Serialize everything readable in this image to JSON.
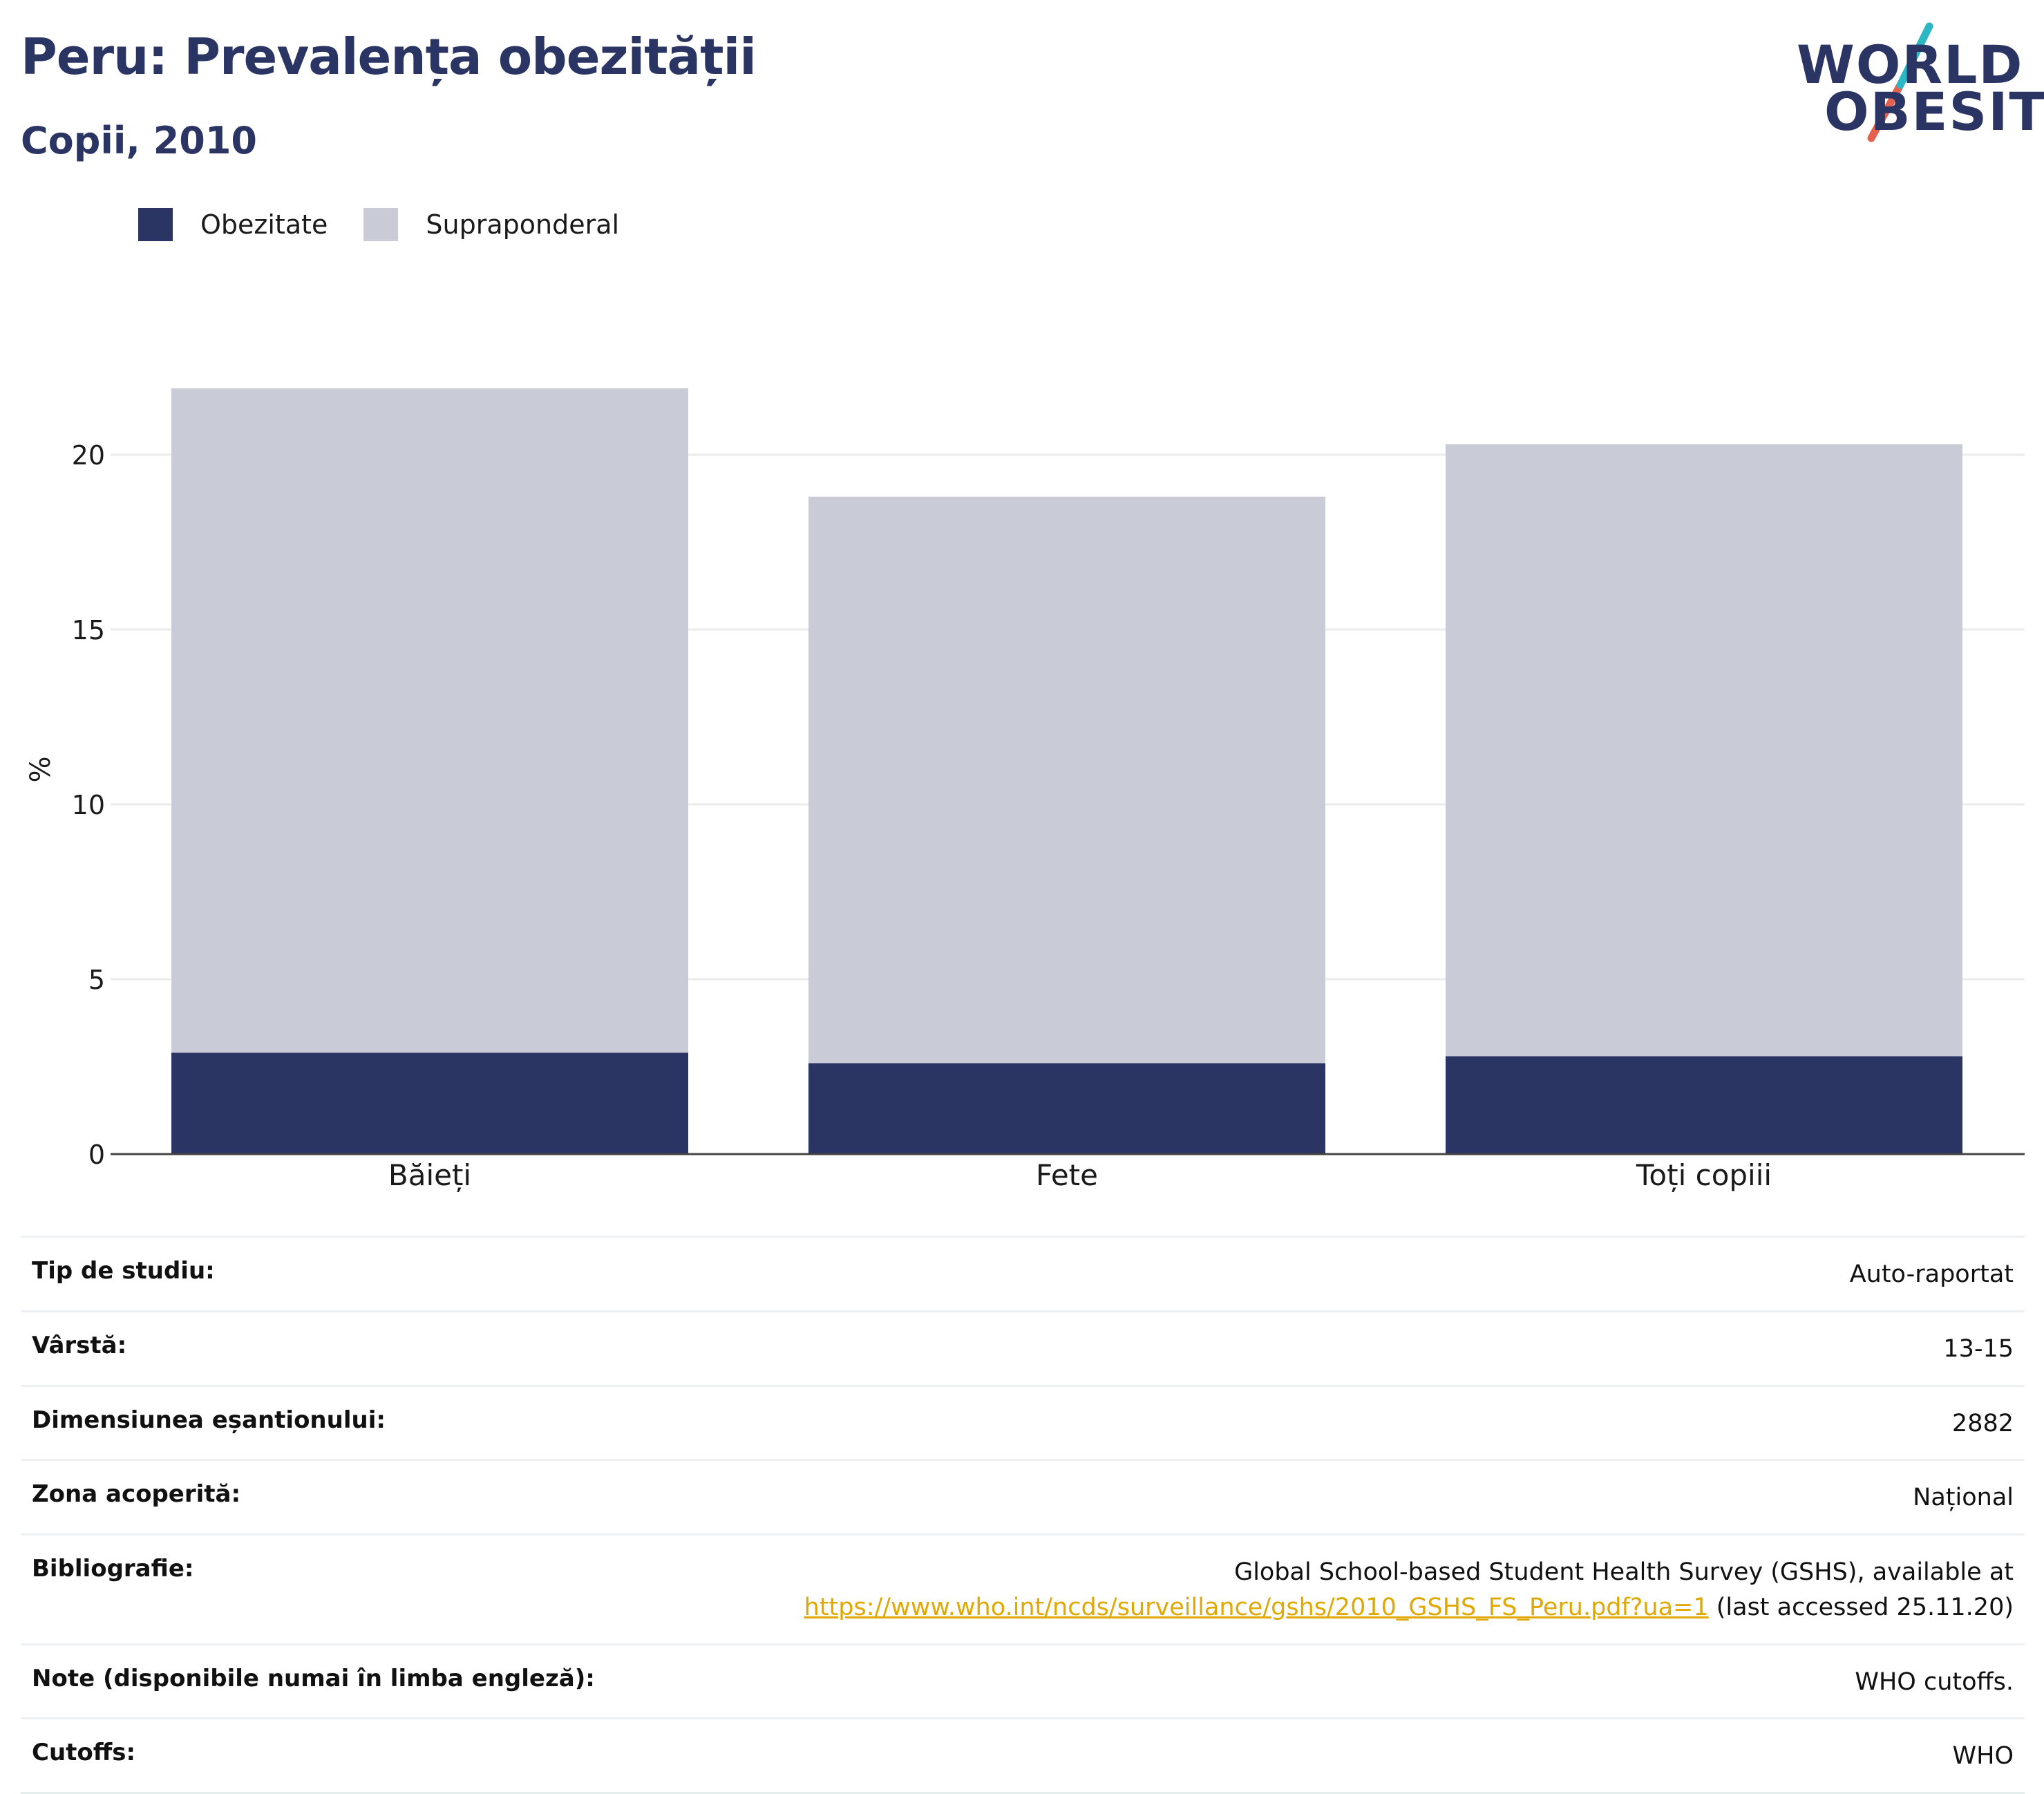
{
  "header": {
    "title": "Peru: Prevalența obezității",
    "subtitle": "Copii, 2010"
  },
  "logo": {
    "line1": "WORLD",
    "line2": "OBESITY",
    "accent_colors": [
      "#2bb8c4",
      "#e5604f"
    ]
  },
  "legend": {
    "items": [
      {
        "label": "Obezitate",
        "color": "#2b3563"
      },
      {
        "label": "Supraponderal",
        "color": "#c9cbd7"
      }
    ]
  },
  "chart_data": {
    "type": "bar",
    "stacked": true,
    "categories": [
      "Băieți",
      "Fete",
      "Toți copiii"
    ],
    "series": [
      {
        "name": "Obezitate",
        "values": [
          2.9,
          2.6,
          2.8
        ],
        "color": "#2b3563"
      },
      {
        "name": "Supraponderal",
        "values": [
          19.0,
          16.2,
          17.5
        ],
        "color": "#c9cbd7"
      }
    ],
    "ylabel": "%",
    "ylim": [
      0,
      22
    ],
    "yticks": [
      0,
      5,
      10,
      15,
      20
    ],
    "grid": true,
    "legend_position": "top-left"
  },
  "info": {
    "rows": [
      {
        "key": "Tip de studiu:",
        "value": "Auto-raportat"
      },
      {
        "key": "Vârstă:",
        "value": "13-15"
      },
      {
        "key": "Dimensiunea eșantionului:",
        "value": "2882"
      },
      {
        "key": "Zona acoperită:",
        "value": "Național"
      }
    ],
    "bibliography": {
      "key": "Bibliografie:",
      "line1": "Global School-based Student Health Survey (GSHS), available at",
      "link": "https://www.who.int/ncds/surveillance/gshs/2010_GSHS_FS_Peru.pdf?ua=1",
      "suffix": " (last accessed 25.11.20)"
    },
    "rows_after": [
      {
        "key": "Note (disponibile numai în limba engleză):",
        "value": "WHO cutoffs."
      },
      {
        "key": "Cutoffs:",
        "value": "WHO"
      }
    ]
  }
}
